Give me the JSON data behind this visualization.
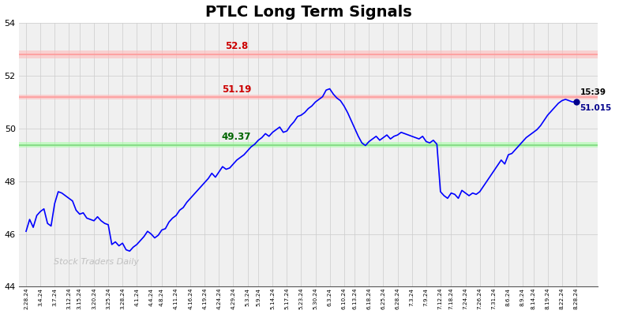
{
  "title": "PTLC Long Term Signals",
  "title_fontsize": 14,
  "background_color": "#ffffff",
  "plot_bg_color": "#f0f0f0",
  "line_color": "blue",
  "ylim": [
    44,
    54
  ],
  "yticks": [
    44,
    46,
    48,
    50,
    52,
    54
  ],
  "hline_red_upper": 52.8,
  "hline_red_lower": 51.19,
  "hline_green": 49.37,
  "label_52_8": "52.8",
  "label_51_19": "51.19",
  "label_49_37": "49.37",
  "last_price": "51.015",
  "last_time": "15:39",
  "watermark": "Stock Traders Daily",
  "xtick_labels": [
    "2.28.24",
    "3.4.24",
    "3.7.24",
    "3.12.24",
    "3.15.24",
    "3.20.24",
    "3.25.24",
    "3.28.24",
    "4.1.24",
    "4.4.24",
    "4.8.24",
    "4.11.24",
    "4.16.24",
    "4.19.24",
    "4.24.24",
    "4.29.24",
    "5.3.24",
    "5.9.24",
    "5.14.24",
    "5.17.24",
    "5.23.24",
    "5.30.24",
    "6.3.24",
    "6.10.24",
    "6.13.24",
    "6.18.24",
    "6.25.24",
    "6.28.24",
    "7.3.24",
    "7.9.24",
    "7.12.24",
    "7.18.24",
    "7.24.24",
    "7.26.24",
    "7.31.24",
    "8.6.24",
    "8.9.24",
    "8.14.24",
    "8.19.24",
    "8.22.24",
    "8.28.24"
  ],
  "prices": [
    46.1,
    46.55,
    46.25,
    46.7,
    46.85,
    46.95,
    46.4,
    46.3,
    47.15,
    47.6,
    47.55,
    47.45,
    47.35,
    47.25,
    46.9,
    46.75,
    46.8,
    46.6,
    46.55,
    46.5,
    46.65,
    46.5,
    46.4,
    46.35,
    45.6,
    45.7,
    45.55,
    45.65,
    45.4,
    45.35,
    45.5,
    45.6,
    45.75,
    45.9,
    46.1,
    46.0,
    45.85,
    45.95,
    46.15,
    46.2,
    46.45,
    46.6,
    46.7,
    46.9,
    47.0,
    47.2,
    47.35,
    47.5,
    47.65,
    47.8,
    47.95,
    48.1,
    48.3,
    48.15,
    48.35,
    48.55,
    48.45,
    48.5,
    48.65,
    48.8,
    48.9,
    49.0,
    49.15,
    49.3,
    49.4,
    49.55,
    49.65,
    49.8,
    49.7,
    49.85,
    49.95,
    50.05,
    49.85,
    49.9,
    50.1,
    50.25,
    50.45,
    50.5,
    50.6,
    50.75,
    50.85,
    51.0,
    51.1,
    51.2,
    51.45,
    51.5,
    51.3,
    51.15,
    51.05,
    50.85,
    50.6,
    50.3,
    50.0,
    49.7,
    49.45,
    49.35,
    49.5,
    49.6,
    49.7,
    49.55,
    49.65,
    49.75,
    49.6,
    49.7,
    49.75,
    49.85,
    49.8,
    49.75,
    49.7,
    49.65,
    49.6,
    49.7,
    49.5,
    49.45,
    49.55,
    49.4,
    47.6,
    47.45,
    47.35,
    47.55,
    47.5,
    47.35,
    47.65,
    47.55,
    47.45,
    47.55,
    47.5,
    47.6,
    47.8,
    48.0,
    48.2,
    48.4,
    48.6,
    48.8,
    48.65,
    49.0,
    49.05,
    49.2,
    49.35,
    49.5,
    49.65,
    49.75,
    49.85,
    49.95,
    50.1,
    50.3,
    50.5,
    50.65,
    50.8,
    50.95,
    51.05,
    51.1,
    51.05,
    51.0,
    51.015
  ]
}
